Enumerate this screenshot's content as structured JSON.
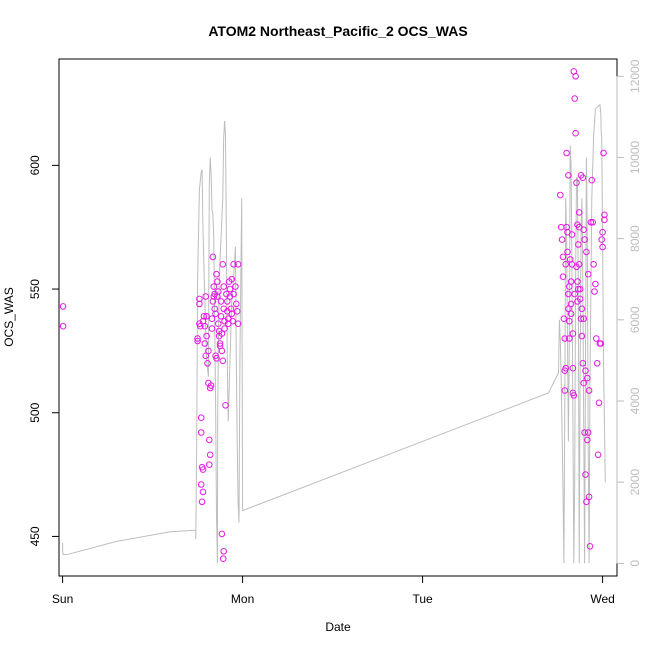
{
  "chart_data": {
    "type": "scatter",
    "title": "ATOM2 Northeast_Pacific_2 OCS_WAS",
    "xlabel": "Date",
    "ylabel": "OCS_WAS",
    "xlim": [
      -0.02,
      3.08
    ],
    "ylim": [
      434,
      643
    ],
    "x_ticks": [
      {
        "value": 0,
        "label": "Sun"
      },
      {
        "value": 1,
        "label": "Mon"
      },
      {
        "value": 2,
        "label": "Tue"
      },
      {
        "value": 3,
        "label": "Wed"
      }
    ],
    "y_ticks": [
      {
        "value": 450,
        "label": "450"
      },
      {
        "value": 500,
        "label": "500"
      },
      {
        "value": 550,
        "label": "550"
      },
      {
        "value": 600,
        "label": "600"
      }
    ],
    "y2lim": [
      -312,
      12426
    ],
    "y2_ticks": [
      {
        "value": 0,
        "label": "0"
      },
      {
        "value": 2000,
        "label": "2000"
      },
      {
        "value": 4000,
        "label": "4000"
      },
      {
        "value": 6000,
        "label": "6000"
      },
      {
        "value": 8000,
        "label": "8000"
      },
      {
        "value": 10000,
        "label": "10000"
      },
      {
        "value": 12000,
        "label": "12000"
      }
    ],
    "grid": false,
    "colors": {
      "points": "#e619e6",
      "altitude_line": "#bdbdbd"
    },
    "series": [
      {
        "type": "points",
        "values": [
          [
            0.003,
            543.0
          ],
          [
            0.003,
            535.0
          ],
          [
            0.75,
            530.0
          ],
          [
            0.75,
            529.0
          ],
          [
            0.76,
            546.0
          ],
          [
            0.76,
            544.0
          ],
          [
            0.76,
            536.0
          ],
          [
            0.765,
            535.0
          ],
          [
            0.77,
            498.0
          ],
          [
            0.77,
            492.0
          ],
          [
            0.775,
            478.0
          ],
          [
            0.775,
            464.0
          ],
          [
            0.78,
            477.0
          ],
          [
            0.78,
            468.0
          ],
          [
            0.78,
            537.0
          ],
          [
            0.785,
            539.0
          ],
          [
            0.79,
            535.0
          ],
          [
            0.79,
            528.0
          ],
          [
            0.795,
            523.0
          ],
          [
            0.795,
            547.0
          ],
          [
            0.8,
            539.0
          ],
          [
            0.8,
            531.0
          ],
          [
            0.805,
            520.0
          ],
          [
            0.81,
            525.0
          ],
          [
            0.81,
            512.0
          ],
          [
            0.815,
            489.0
          ],
          [
            0.815,
            479.0
          ],
          [
            0.82,
            483.0
          ],
          [
            0.82,
            510.0
          ],
          [
            0.825,
            511.0
          ],
          [
            0.83,
            534.0
          ],
          [
            0.83,
            538.0
          ],
          [
            0.835,
            545.0
          ],
          [
            0.835,
            563.0
          ],
          [
            0.84,
            551.0
          ],
          [
            0.84,
            547.0
          ],
          [
            0.845,
            548.0
          ],
          [
            0.845,
            542.0
          ],
          [
            0.85,
            540.0
          ],
          [
            0.85,
            523.0
          ],
          [
            0.855,
            522.0
          ],
          [
            0.855,
            556.0
          ],
          [
            0.86,
            553.0
          ],
          [
            0.86,
            547.0
          ],
          [
            0.865,
            549.0
          ],
          [
            0.865,
            536.0
          ],
          [
            0.87,
            533.0
          ],
          [
            0.87,
            531.0
          ],
          [
            0.875,
            528.0
          ],
          [
            0.875,
            527.0
          ],
          [
            0.88,
            545.0
          ],
          [
            0.88,
            539.0
          ],
          [
            0.885,
            532.0
          ],
          [
            0.885,
            525.0
          ],
          [
            0.89,
            521.0
          ],
          [
            0.89,
            560.0
          ],
          [
            0.895,
            551.0
          ],
          [
            0.895,
            542.0
          ],
          [
            0.9,
            537.0
          ],
          [
            0.9,
            534.0
          ],
          [
            0.905,
            503.0
          ],
          [
            0.91,
            548.0
          ],
          [
            0.915,
            545.0
          ],
          [
            0.915,
            541.0
          ],
          [
            0.92,
            538.0
          ],
          [
            0.92,
            536.0
          ],
          [
            0.925,
            553.0
          ],
          [
            0.93,
            550.0
          ],
          [
            0.93,
            547.0
          ],
          [
            0.935,
            542.0
          ],
          [
            0.94,
            554.0
          ],
          [
            0.94,
            540.0
          ],
          [
            0.945,
            537.0
          ],
          [
            0.95,
            560.0
          ],
          [
            0.95,
            548.0
          ],
          [
            0.96,
            551.0
          ],
          [
            0.965,
            544.0
          ],
          [
            0.97,
            541.0
          ],
          [
            0.975,
            536.0
          ],
          [
            0.975,
            560.0
          ],
          [
            0.885,
            451.0
          ],
          [
            0.895,
            444.0
          ],
          [
            0.892,
            441.0
          ],
          [
            0.77,
            471.0
          ],
          [
            2.765,
            588.0
          ],
          [
            2.77,
            575.0
          ],
          [
            2.775,
            570.0
          ],
          [
            2.78,
            563.0
          ],
          [
            2.78,
            555.0
          ],
          [
            2.785,
            538.0
          ],
          [
            2.79,
            530.0
          ],
          [
            2.79,
            517.0
          ],
          [
            2.795,
            518.0
          ],
          [
            2.8,
            575.0
          ],
          [
            2.8,
            605.0
          ],
          [
            2.805,
            565.0
          ],
          [
            2.81,
            548.0
          ],
          [
            2.81,
            542.0
          ],
          [
            2.815,
            537.0
          ],
          [
            2.815,
            530.0
          ],
          [
            2.82,
            562.0
          ],
          [
            2.825,
            553.0
          ],
          [
            2.825,
            544.0
          ],
          [
            2.83,
            560.0
          ],
          [
            2.83,
            572.0
          ],
          [
            2.835,
            508.0
          ],
          [
            2.835,
            518.0
          ],
          [
            2.84,
            638.0
          ],
          [
            2.845,
            627.0
          ],
          [
            2.85,
            636.0
          ],
          [
            2.85,
            613.0
          ],
          [
            2.855,
            593.0
          ],
          [
            2.86,
            553.0
          ],
          [
            2.86,
            545.0
          ],
          [
            2.865,
            568.0
          ],
          [
            2.87,
            575.0
          ],
          [
            2.87,
            560.0
          ],
          [
            2.875,
            550.0
          ],
          [
            2.88,
            538.0
          ],
          [
            2.885,
            531.0
          ],
          [
            2.89,
            520.0
          ],
          [
            2.895,
            512.0
          ],
          [
            2.9,
            492.0
          ],
          [
            2.905,
            475.0
          ],
          [
            2.91,
            464.0
          ],
          [
            2.915,
            489.0
          ],
          [
            2.92,
            492.0
          ],
          [
            2.925,
            466.0
          ],
          [
            2.93,
            446.0
          ],
          [
            2.935,
            577.0
          ],
          [
            2.94,
            594.0
          ],
          [
            2.945,
            577.0
          ],
          [
            2.95,
            560.0
          ],
          [
            2.955,
            549.0
          ],
          [
            2.96,
            552.0
          ],
          [
            2.965,
            530.0
          ],
          [
            2.97,
            520.0
          ],
          [
            2.975,
            483.0
          ],
          [
            2.98,
            504.0
          ],
          [
            2.985,
            528.0
          ],
          [
            2.99,
            528.0
          ],
          [
            2.995,
            570.0
          ],
          [
            3.0,
            573.0
          ],
          [
            3.0,
            567.0
          ],
          [
            3.005,
            605.0
          ],
          [
            3.01,
            580.0
          ],
          [
            3.01,
            578.0
          ],
          [
            2.86,
            576.0
          ],
          [
            2.87,
            581.0
          ],
          [
            2.88,
            596.0
          ],
          [
            2.89,
            595.0
          ],
          [
            2.895,
            574.0
          ],
          [
            2.9,
            570.0
          ],
          [
            2.91,
            565.0
          ],
          [
            2.92,
            556.0
          ],
          [
            2.805,
            573.0
          ],
          [
            2.815,
            551.0
          ],
          [
            2.825,
            540.0
          ],
          [
            2.835,
            532.0
          ],
          [
            2.845,
            548.0
          ],
          [
            2.855,
            559.0
          ],
          [
            2.865,
            550.0
          ],
          [
            2.875,
            546.0
          ],
          [
            2.885,
            542.0
          ],
          [
            2.895,
            538.0
          ],
          [
            2.905,
            517.0
          ],
          [
            2.915,
            514.0
          ],
          [
            2.925,
            509.0
          ],
          [
            2.795,
            560.0
          ],
          [
            2.81,
            596.0
          ],
          [
            2.79,
            509.0
          ],
          [
            2.84,
            507.0
          ]
        ]
      },
      {
        "type": "line",
        "axis": "right",
        "values": [
          [
            0.0,
            510
          ],
          [
            0.0,
            300
          ],
          [
            0.003,
            220
          ],
          [
            0.02,
            210
          ],
          [
            0.3,
            540
          ],
          [
            0.6,
            780
          ],
          [
            0.74,
            820
          ],
          [
            0.74,
            600
          ],
          [
            0.745,
            3000
          ],
          [
            0.75,
            7000
          ],
          [
            0.76,
            9200
          ],
          [
            0.77,
            9650
          ],
          [
            0.775,
            9700
          ],
          [
            0.78,
            8200
          ],
          [
            0.79,
            6500
          ],
          [
            0.8,
            5000
          ],
          [
            0.81,
            4600
          ],
          [
            0.815,
            9300
          ],
          [
            0.82,
            10000
          ],
          [
            0.825,
            9600
          ],
          [
            0.83,
            8700
          ],
          [
            0.835,
            8600
          ],
          [
            0.84,
            8000
          ],
          [
            0.85,
            4000
          ],
          [
            0.855,
            1200
          ],
          [
            0.86,
            0
          ],
          [
            0.862,
            4000
          ],
          [
            0.87,
            7000
          ],
          [
            0.88,
            8000
          ],
          [
            0.89,
            9000
          ],
          [
            0.895,
            10500
          ],
          [
            0.9,
            10900
          ],
          [
            0.905,
            10500
          ],
          [
            0.91,
            8000
          ],
          [
            0.915,
            5000
          ],
          [
            0.92,
            3500
          ],
          [
            0.93,
            5000
          ],
          [
            0.94,
            6500
          ],
          [
            0.95,
            7000
          ],
          [
            0.96,
            7800
          ],
          [
            0.965,
            5000
          ],
          [
            0.97,
            3000
          ],
          [
            0.975,
            1500
          ],
          [
            0.98,
            1000
          ],
          [
            0.985,
            5000
          ],
          [
            0.99,
            7000
          ],
          [
            0.995,
            9000
          ],
          [
            1.0,
            1300
          ],
          [
            2.7,
            4200
          ],
          [
            2.755,
            4700
          ],
          [
            2.76,
            6000
          ],
          [
            2.765,
            5500
          ],
          [
            2.77,
            4500
          ],
          [
            2.775,
            3200
          ],
          [
            2.78,
            1800
          ],
          [
            2.785,
            0
          ],
          [
            2.79,
            4000
          ],
          [
            2.795,
            9000
          ],
          [
            2.8,
            8000
          ],
          [
            2.81,
            3000
          ],
          [
            2.815,
            5500
          ],
          [
            2.82,
            10300
          ],
          [
            2.825,
            9800
          ],
          [
            2.83,
            7000
          ],
          [
            2.84,
            0
          ],
          [
            2.845,
            2000
          ],
          [
            2.85,
            7000
          ],
          [
            2.855,
            9500
          ],
          [
            2.86,
            9500
          ],
          [
            2.865,
            7000
          ],
          [
            2.87,
            0
          ],
          [
            2.875,
            4500
          ],
          [
            2.88,
            8000
          ],
          [
            2.885,
            9000
          ],
          [
            2.89,
            7000
          ],
          [
            2.895,
            3500
          ],
          [
            2.9,
            0
          ],
          [
            2.905,
            5000
          ],
          [
            2.91,
            10000
          ],
          [
            2.915,
            8000
          ],
          [
            2.92,
            3000
          ],
          [
            2.925,
            0
          ],
          [
            2.93,
            4500
          ],
          [
            2.94,
            9000
          ],
          [
            2.95,
            10500
          ],
          [
            2.96,
            11200
          ],
          [
            2.985,
            11300
          ],
          [
            2.99,
            11100
          ],
          [
            2.992,
            10600
          ],
          [
            2.995,
            10500
          ],
          [
            3.0,
            8000
          ],
          [
            3.005,
            5000
          ],
          [
            3.01,
            3500
          ],
          [
            3.015,
            2000
          ]
        ]
      }
    ]
  }
}
